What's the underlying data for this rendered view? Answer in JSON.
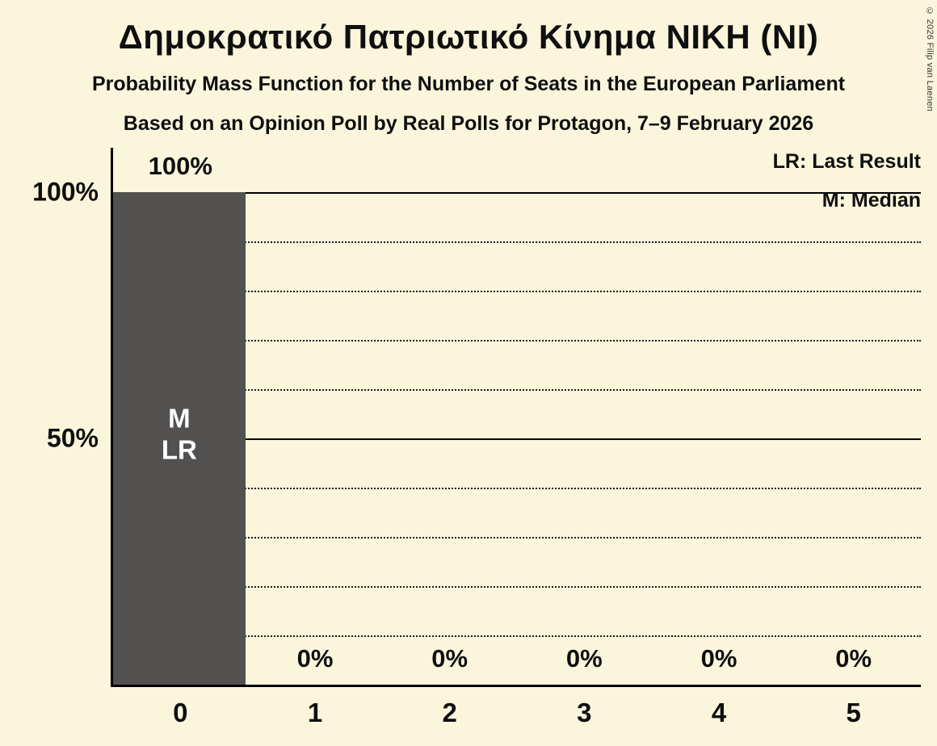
{
  "header": {
    "title": "Δημοκρατικό Πατριωτικό Κίνημα ΝΙΚΗ (ΝΙ)",
    "subtitle": "Probability Mass Function for the Number of Seats in the European Parliament",
    "source": "Based on an Opinion Poll by Real Polls for Protagon, 7–9 February 2026"
  },
  "legend": {
    "lr": "LR: Last Result",
    "m": "M: Median"
  },
  "copyright": "© 2026 Filip van Laenen",
  "chart_data": {
    "type": "bar",
    "title": "Δημοκρατικό Πατριωτικό Κίνημα ΝΙΚΗ (ΝΙ)",
    "categories": [
      "0",
      "1",
      "2",
      "3",
      "4",
      "5"
    ],
    "values": [
      100,
      0,
      0,
      0,
      0,
      0
    ],
    "value_labels": [
      "100%",
      "0%",
      "0%",
      "0%",
      "0%",
      "0%"
    ],
    "bar_annotations": [
      [
        "M",
        "LR"
      ],
      [],
      [],
      [],
      [],
      []
    ],
    "xlabel": "",
    "ylabel": "",
    "ylim": [
      0,
      100
    ],
    "yticks": [
      {
        "value": 100,
        "label": "100%"
      },
      {
        "value": 50,
        "label": "50%"
      }
    ],
    "gridlines": {
      "solid": [
        100,
        50
      ],
      "dotted": [
        90,
        80,
        70,
        60,
        40,
        30,
        20,
        10
      ]
    },
    "legend_position": "top-right",
    "median_seats": 0,
    "last_result_seats": 0,
    "colors": {
      "background": "#fbf5dc",
      "bar": "#535150",
      "text": "#0f0f0f",
      "bar_label": "#ffffff"
    }
  }
}
